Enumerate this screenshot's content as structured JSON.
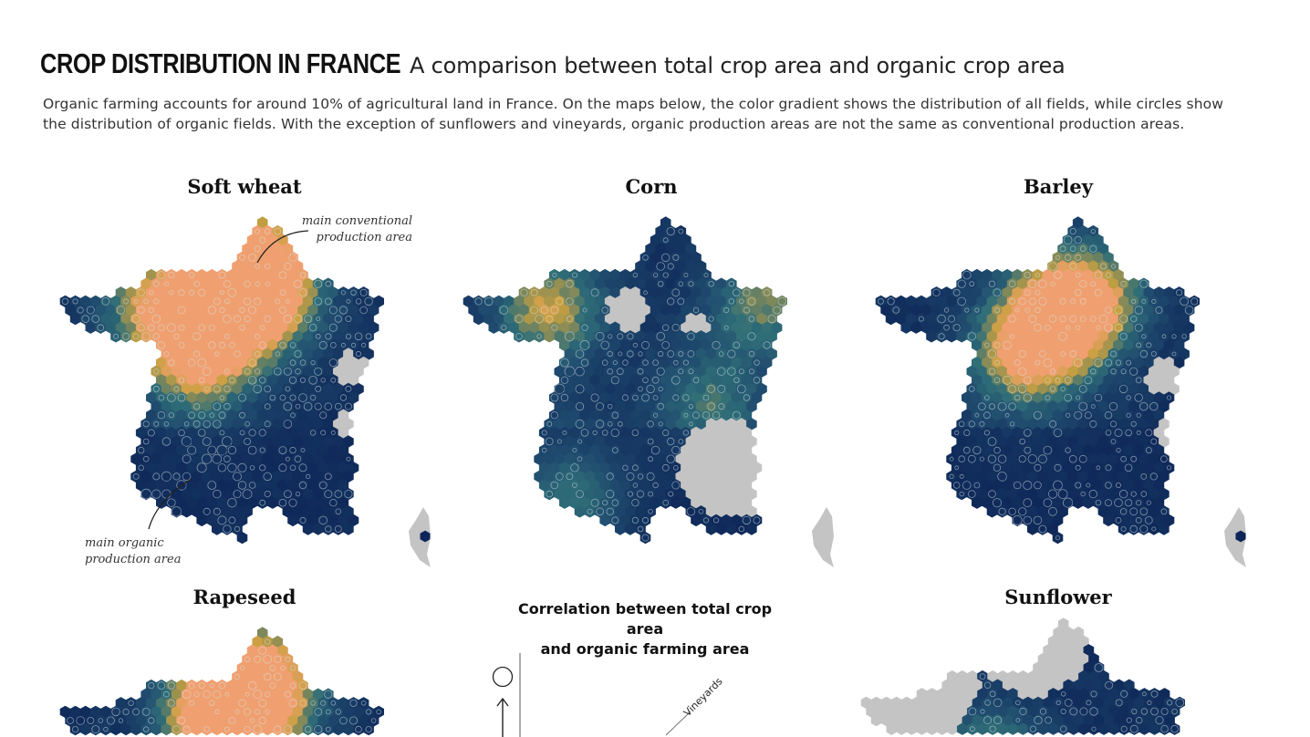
{
  "header": {
    "title": "Crop distribution in France",
    "subtitle": "A comparison between total crop area and organic crop area",
    "intro_line1": "Organic farming accounts for around 10% of agricultural land in France. On the maps below, the color gradient shows the distribution of all fields, while circles show",
    "intro_line2": "the distribution of organic fields. With the exception of sunflowers and vineyards, organic production areas are not the same as conventional production areas."
  },
  "colors": {
    "low": "#0d2557",
    "mid": "#2f6e78",
    "high": "#c8a040",
    "peak": "#f0a070",
    "no_data": "#c4c4c4",
    "organic_circle": "#d8e6e6"
  },
  "chart_data": [
    {
      "type": "heatmap",
      "title": "Soft wheat",
      "annotations": [
        "main conventional production area",
        "main organic production area"
      ]
    },
    {
      "type": "heatmap",
      "title": "Corn"
    },
    {
      "type": "heatmap",
      "title": "Barley"
    },
    {
      "type": "heatmap",
      "title": "Rapeseed"
    },
    {
      "type": "scatter",
      "title": "Correlation between total crop area and organic farming area",
      "point_labels": [
        "Vineyards"
      ]
    },
    {
      "type": "heatmap",
      "title": "Sunflower"
    }
  ],
  "annotations": {
    "conventional_line1": "main conventional",
    "conventional_line2": "production area",
    "organic_line1": "main organic",
    "organic_line2": "production area"
  },
  "correlation": {
    "title_line1": "Correlation between total crop area",
    "title_line2": "and organic farming area",
    "vineyards_label": "Vineyards"
  }
}
